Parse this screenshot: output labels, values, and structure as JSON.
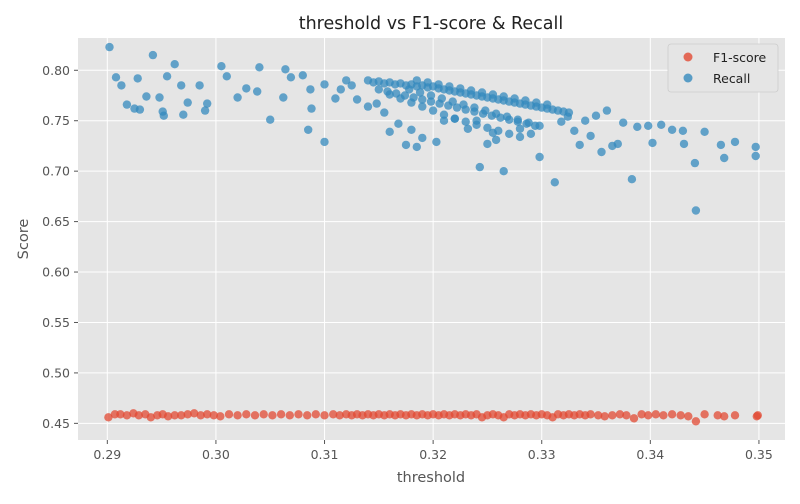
{
  "chart_data": {
    "type": "scatter",
    "title": "threshold vs F1-score & Recall",
    "xlabel": "threshold",
    "ylabel": "Score",
    "xlim": [
      0.2873,
      0.3524
    ],
    "ylim": [
      0.4335,
      0.832
    ],
    "xticks": [
      "0.29",
      "0.30",
      "0.31",
      "0.32",
      "0.33",
      "0.34",
      "0.35"
    ],
    "xtick_values": [
      0.29,
      0.3,
      0.31,
      0.32,
      0.33,
      0.34,
      0.35
    ],
    "yticks": [
      "0.45",
      "0.50",
      "0.55",
      "0.60",
      "0.65",
      "0.70",
      "0.75",
      "0.80"
    ],
    "ytick_values": [
      0.45,
      0.5,
      0.55,
      0.6,
      0.65,
      0.7,
      0.75,
      0.8
    ],
    "grid": true,
    "legend_position": "top-right",
    "series": [
      {
        "name": "F1-score",
        "color": "#E24A33",
        "points": [
          [
            0.2901,
            0.456
          ],
          [
            0.2907,
            0.459
          ],
          [
            0.2912,
            0.459
          ],
          [
            0.2918,
            0.458
          ],
          [
            0.2924,
            0.46
          ],
          [
            0.2929,
            0.458
          ],
          [
            0.2935,
            0.459
          ],
          [
            0.294,
            0.456
          ],
          [
            0.2946,
            0.458
          ],
          [
            0.2951,
            0.459
          ],
          [
            0.2956,
            0.457
          ],
          [
            0.2962,
            0.458
          ],
          [
            0.2968,
            0.458
          ],
          [
            0.2974,
            0.459
          ],
          [
            0.298,
            0.46
          ],
          [
            0.2986,
            0.458
          ],
          [
            0.2992,
            0.459
          ],
          [
            0.2998,
            0.458
          ],
          [
            0.3004,
            0.457
          ],
          [
            0.3012,
            0.459
          ],
          [
            0.302,
            0.458
          ],
          [
            0.3028,
            0.459
          ],
          [
            0.3036,
            0.458
          ],
          [
            0.3044,
            0.459
          ],
          [
            0.3052,
            0.458
          ],
          [
            0.306,
            0.459
          ],
          [
            0.3068,
            0.458
          ],
          [
            0.3076,
            0.459
          ],
          [
            0.3084,
            0.458
          ],
          [
            0.3092,
            0.459
          ],
          [
            0.31,
            0.458
          ],
          [
            0.3108,
            0.459
          ],
          [
            0.3114,
            0.458
          ],
          [
            0.312,
            0.459
          ],
          [
            0.3125,
            0.458
          ],
          [
            0.313,
            0.459
          ],
          [
            0.3135,
            0.458
          ],
          [
            0.314,
            0.459
          ],
          [
            0.3145,
            0.458
          ],
          [
            0.315,
            0.459
          ],
          [
            0.3155,
            0.458
          ],
          [
            0.316,
            0.459
          ],
          [
            0.3165,
            0.458
          ],
          [
            0.317,
            0.459
          ],
          [
            0.3175,
            0.458
          ],
          [
            0.318,
            0.459
          ],
          [
            0.3185,
            0.458
          ],
          [
            0.319,
            0.459
          ],
          [
            0.3195,
            0.458
          ],
          [
            0.32,
            0.459
          ],
          [
            0.3205,
            0.458
          ],
          [
            0.321,
            0.459
          ],
          [
            0.3215,
            0.458
          ],
          [
            0.322,
            0.459
          ],
          [
            0.3225,
            0.458
          ],
          [
            0.323,
            0.459
          ],
          [
            0.3235,
            0.458
          ],
          [
            0.324,
            0.459
          ],
          [
            0.3245,
            0.456
          ],
          [
            0.325,
            0.458
          ],
          [
            0.3255,
            0.459
          ],
          [
            0.326,
            0.458
          ],
          [
            0.3265,
            0.456
          ],
          [
            0.327,
            0.459
          ],
          [
            0.3275,
            0.458
          ],
          [
            0.328,
            0.459
          ],
          [
            0.3285,
            0.458
          ],
          [
            0.329,
            0.459
          ],
          [
            0.3295,
            0.458
          ],
          [
            0.33,
            0.459
          ],
          [
            0.3305,
            0.458
          ],
          [
            0.331,
            0.456
          ],
          [
            0.3315,
            0.459
          ],
          [
            0.332,
            0.458
          ],
          [
            0.3325,
            0.459
          ],
          [
            0.333,
            0.458
          ],
          [
            0.3335,
            0.459
          ],
          [
            0.334,
            0.458
          ],
          [
            0.3345,
            0.459
          ],
          [
            0.3352,
            0.458
          ],
          [
            0.3358,
            0.457
          ],
          [
            0.3365,
            0.458
          ],
          [
            0.3372,
            0.459
          ],
          [
            0.3378,
            0.458
          ],
          [
            0.3385,
            0.455
          ],
          [
            0.3392,
            0.459
          ],
          [
            0.3398,
            0.458
          ],
          [
            0.3405,
            0.459
          ],
          [
            0.3412,
            0.458
          ],
          [
            0.342,
            0.459
          ],
          [
            0.3428,
            0.458
          ],
          [
            0.3435,
            0.457
          ],
          [
            0.3442,
            0.452
          ],
          [
            0.345,
            0.459
          ],
          [
            0.3462,
            0.458
          ],
          [
            0.3468,
            0.457
          ],
          [
            0.3478,
            0.458
          ],
          [
            0.3498,
            0.457
          ],
          [
            0.3499,
            0.458
          ]
        ]
      },
      {
        "name": "Recall",
        "color": "#348ABD",
        "points": [
          [
            0.2902,
            0.823
          ],
          [
            0.2908,
            0.793
          ],
          [
            0.2913,
            0.785
          ],
          [
            0.2918,
            0.766
          ],
          [
            0.2925,
            0.762
          ],
          [
            0.2928,
            0.792
          ],
          [
            0.293,
            0.761
          ],
          [
            0.2936,
            0.774
          ],
          [
            0.2942,
            0.815
          ],
          [
            0.2948,
            0.773
          ],
          [
            0.2951,
            0.759
          ],
          [
            0.2952,
            0.755
          ],
          [
            0.2955,
            0.794
          ],
          [
            0.2962,
            0.806
          ],
          [
            0.2968,
            0.785
          ],
          [
            0.297,
            0.756
          ],
          [
            0.2974,
            0.768
          ],
          [
            0.2985,
            0.785
          ],
          [
            0.299,
            0.76
          ],
          [
            0.2992,
            0.767
          ],
          [
            0.3005,
            0.804
          ],
          [
            0.301,
            0.794
          ],
          [
            0.302,
            0.773
          ],
          [
            0.3028,
            0.782
          ],
          [
            0.3038,
            0.779
          ],
          [
            0.304,
            0.803
          ],
          [
            0.305,
            0.751
          ],
          [
            0.3062,
            0.773
          ],
          [
            0.3064,
            0.801
          ],
          [
            0.3069,
            0.793
          ],
          [
            0.308,
            0.795
          ],
          [
            0.3085,
            0.741
          ],
          [
            0.3087,
            0.781
          ],
          [
            0.3088,
            0.762
          ],
          [
            0.31,
            0.786
          ],
          [
            0.31,
            0.729
          ],
          [
            0.311,
            0.772
          ],
          [
            0.3115,
            0.781
          ],
          [
            0.312,
            0.79
          ],
          [
            0.3125,
            0.785
          ],
          [
            0.313,
            0.771
          ],
          [
            0.314,
            0.764
          ],
          [
            0.3148,
            0.767
          ],
          [
            0.3155,
            0.758
          ],
          [
            0.316,
            0.739
          ],
          [
            0.3168,
            0.747
          ],
          [
            0.3175,
            0.726
          ],
          [
            0.318,
            0.741
          ],
          [
            0.3185,
            0.724
          ],
          [
            0.319,
            0.733
          ],
          [
            0.3203,
            0.729
          ],
          [
            0.321,
            0.75
          ],
          [
            0.322,
            0.752
          ],
          [
            0.3232,
            0.742
          ],
          [
            0.324,
            0.75
          ],
          [
            0.3243,
            0.704
          ],
          [
            0.325,
            0.727
          ],
          [
            0.3255,
            0.738
          ],
          [
            0.3258,
            0.731
          ],
          [
            0.3265,
            0.7
          ],
          [
            0.328,
            0.742
          ],
          [
            0.329,
            0.737
          ],
          [
            0.3298,
            0.714
          ],
          [
            0.3312,
            0.689
          ],
          [
            0.3318,
            0.749
          ],
          [
            0.3324,
            0.754
          ],
          [
            0.333,
            0.74
          ],
          [
            0.3335,
            0.726
          ],
          [
            0.334,
            0.75
          ],
          [
            0.3345,
            0.735
          ],
          [
            0.335,
            0.755
          ],
          [
            0.3355,
            0.719
          ],
          [
            0.336,
            0.76
          ],
          [
            0.3365,
            0.725
          ],
          [
            0.337,
            0.727
          ],
          [
            0.3375,
            0.748
          ],
          [
            0.3383,
            0.692
          ],
          [
            0.3388,
            0.744
          ],
          [
            0.3398,
            0.745
          ],
          [
            0.3402,
            0.728
          ],
          [
            0.341,
            0.746
          ],
          [
            0.342,
            0.741
          ],
          [
            0.343,
            0.74
          ],
          [
            0.3431,
            0.727
          ],
          [
            0.3441,
            0.708
          ],
          [
            0.3442,
            0.661
          ],
          [
            0.345,
            0.739
          ],
          [
            0.3465,
            0.726
          ],
          [
            0.3468,
            0.713
          ],
          [
            0.3478,
            0.729
          ],
          [
            0.3497,
            0.724
          ],
          [
            0.3497,
            0.715
          ],
          [
            0.314,
            0.79
          ],
          [
            0.3145,
            0.788
          ],
          [
            0.315,
            0.789
          ],
          [
            0.3155,
            0.787
          ],
          [
            0.316,
            0.788
          ],
          [
            0.3165,
            0.786
          ],
          [
            0.317,
            0.787
          ],
          [
            0.3175,
            0.785
          ],
          [
            0.318,
            0.786
          ],
          [
            0.3185,
            0.784
          ],
          [
            0.319,
            0.785
          ],
          [
            0.3195,
            0.783
          ],
          [
            0.32,
            0.784
          ],
          [
            0.3205,
            0.782
          ],
          [
            0.321,
            0.781
          ],
          [
            0.3215,
            0.78
          ],
          [
            0.322,
            0.779
          ],
          [
            0.3225,
            0.778
          ],
          [
            0.323,
            0.777
          ],
          [
            0.3235,
            0.776
          ],
          [
            0.324,
            0.775
          ],
          [
            0.3245,
            0.774
          ],
          [
            0.325,
            0.773
          ],
          [
            0.3255,
            0.772
          ],
          [
            0.326,
            0.771
          ],
          [
            0.3265,
            0.77
          ],
          [
            0.327,
            0.769
          ],
          [
            0.3275,
            0.768
          ],
          [
            0.328,
            0.767
          ],
          [
            0.3285,
            0.766
          ],
          [
            0.329,
            0.765
          ],
          [
            0.3295,
            0.764
          ],
          [
            0.33,
            0.763
          ],
          [
            0.3305,
            0.762
          ],
          [
            0.331,
            0.761
          ],
          [
            0.3315,
            0.76
          ],
          [
            0.332,
            0.759
          ],
          [
            0.3325,
            0.758
          ],
          [
            0.315,
            0.781
          ],
          [
            0.3158,
            0.779
          ],
          [
            0.3166,
            0.777
          ],
          [
            0.3174,
            0.775
          ],
          [
            0.3182,
            0.773
          ],
          [
            0.319,
            0.771
          ],
          [
            0.3198,
            0.769
          ],
          [
            0.3206,
            0.767
          ],
          [
            0.3214,
            0.765
          ],
          [
            0.3222,
            0.763
          ],
          [
            0.323,
            0.761
          ],
          [
            0.3238,
            0.759
          ],
          [
            0.3246,
            0.757
          ],
          [
            0.3254,
            0.755
          ],
          [
            0.3262,
            0.753
          ],
          [
            0.327,
            0.751
          ],
          [
            0.3278,
            0.749
          ],
          [
            0.3286,
            0.747
          ],
          [
            0.3294,
            0.745
          ],
          [
            0.316,
            0.776
          ],
          [
            0.317,
            0.772
          ],
          [
            0.318,
            0.768
          ],
          [
            0.319,
            0.764
          ],
          [
            0.32,
            0.76
          ],
          [
            0.321,
            0.756
          ],
          [
            0.322,
            0.752
          ],
          [
            0.323,
            0.749
          ],
          [
            0.324,
            0.746
          ],
          [
            0.325,
            0.743
          ],
          [
            0.326,
            0.74
          ],
          [
            0.327,
            0.737
          ],
          [
            0.328,
            0.734
          ],
          [
            0.3185,
            0.79
          ],
          [
            0.3195,
            0.788
          ],
          [
            0.3205,
            0.786
          ],
          [
            0.3215,
            0.784
          ],
          [
            0.3225,
            0.782
          ],
          [
            0.3235,
            0.78
          ],
          [
            0.3245,
            0.778
          ],
          [
            0.3255,
            0.776
          ],
          [
            0.3265,
            0.774
          ],
          [
            0.3275,
            0.772
          ],
          [
            0.3285,
            0.77
          ],
          [
            0.3295,
            0.768
          ],
          [
            0.3305,
            0.766
          ],
          [
            0.3178,
            0.781
          ],
          [
            0.3188,
            0.778
          ],
          [
            0.3198,
            0.775
          ],
          [
            0.3208,
            0.772
          ],
          [
            0.3218,
            0.769
          ],
          [
            0.3228,
            0.766
          ],
          [
            0.3238,
            0.763
          ],
          [
            0.3248,
            0.76
          ],
          [
            0.3258,
            0.757
          ],
          [
            0.3268,
            0.754
          ],
          [
            0.3278,
            0.751
          ],
          [
            0.3288,
            0.748
          ],
          [
            0.3298,
            0.745
          ]
        ]
      }
    ]
  }
}
